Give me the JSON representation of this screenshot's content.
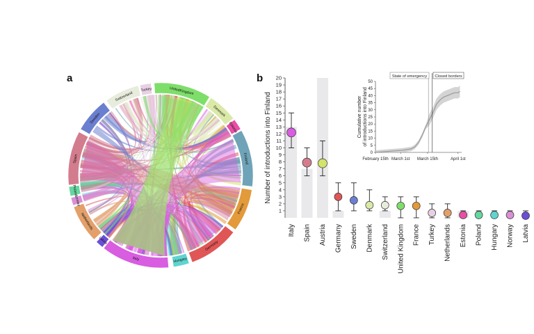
{
  "panels": {
    "a": "a",
    "b": "b"
  },
  "chart_data": [
    {
      "type": "chord",
      "panel": "a",
      "sectors": [
        {
          "name": "Austria",
          "color": "#d4e36b"
        },
        {
          "name": "Denmark",
          "color": "#dbe9a8"
        },
        {
          "name": "Estonia",
          "color": "#e84fa4"
        },
        {
          "name": "Finland",
          "color": "#6fa3b8"
        },
        {
          "name": "France",
          "color": "#e39a3a"
        },
        {
          "name": "Germany",
          "color": "#e05656"
        },
        {
          "name": "Hungary",
          "color": "#5fd4d0"
        },
        {
          "name": "Italy",
          "color": "#d85de0"
        },
        {
          "name": "Latvia",
          "color": "#6b4fd6"
        },
        {
          "name": "Netherlands",
          "color": "#e3a06b"
        },
        {
          "name": "Norway",
          "color": "#d98fd4"
        },
        {
          "name": "Poland",
          "color": "#66d6a0"
        },
        {
          "name": "Spain",
          "color": "#d37c8e"
        },
        {
          "name": "Sweden",
          "color": "#6b7fd0"
        },
        {
          "name": "Switzerland",
          "color": "#e8ecdc"
        },
        {
          "name": "Turkey",
          "color": "#e8d0e4"
        },
        {
          "name": "UnitedKingdom",
          "color": "#7ede6a"
        }
      ]
    },
    {
      "type": "dot-errorbar",
      "panel": "b",
      "ylabel": "Number of introductions into Finland",
      "ylim": [
        0,
        20
      ],
      "yticks": [
        1,
        2,
        3,
        4,
        5,
        6,
        7,
        8,
        9,
        10,
        11,
        12,
        13,
        14,
        15,
        16,
        17,
        18,
        19,
        20
      ],
      "categories": [
        "Italy",
        "Spain",
        "Austria",
        "Germany",
        "Sweden",
        "Denmark",
        "Switzerland",
        "United Kingdom",
        "France",
        "Turkey",
        "Netherlands",
        "Estonia",
        "Poland",
        "Hungary",
        "Norway",
        "Latvia"
      ],
      "values": [
        12.2,
        7.9,
        7.8,
        3.0,
        2.5,
        1.8,
        1.8,
        1.7,
        1.7,
        0.7,
        0.7,
        0.4,
        0.4,
        0.4,
        0.4,
        0.3
      ],
      "lower": [
        10.0,
        6.0,
        6.0,
        1.0,
        1.0,
        1.0,
        1.0,
        0,
        0,
        0,
        0,
        0,
        0,
        0,
        0,
        0
      ],
      "upper": [
        15.0,
        10.0,
        11.0,
        5.0,
        5.0,
        4.0,
        3.0,
        3.0,
        3.0,
        2.0,
        2.0,
        1.0,
        1.0,
        1.0,
        1.0,
        1.0
      ],
      "bar_background": [
        13.0,
        7.0,
        20.0,
        1.0,
        0.0,
        0.0,
        1.0,
        0.0,
        0.0,
        0.0,
        0.0,
        1.0,
        0.0,
        0.0,
        0.0,
        0.0
      ],
      "colors": [
        "#d85de0",
        "#d37c8e",
        "#d4e36b",
        "#e05656",
        "#6b7fd0",
        "#dbe9a8",
        "#e8ecdc",
        "#7ede6a",
        "#e39a3a",
        "#e8d0e4",
        "#e3a06b",
        "#e84fa4",
        "#66d6a0",
        "#5fd4d0",
        "#d98fd4",
        "#6b4fd6"
      ]
    },
    {
      "type": "line",
      "panel": "inset",
      "ylabel": "Cumulative number\nof introductions into Finland",
      "ylim": [
        0,
        50
      ],
      "yticks": [
        0,
        5,
        10,
        15,
        20,
        25,
        30,
        35,
        40,
        45,
        50
      ],
      "xticks": [
        "February 15th",
        "March 1st",
        "March 15th",
        "April 1st"
      ],
      "annotations": [
        "State of emergency",
        "Closed borders"
      ],
      "series": [
        {
          "x": [
            0,
            5,
            10,
            15,
            20,
            22,
            24,
            26,
            28,
            30,
            32,
            34,
            36,
            38,
            40,
            42,
            44,
            46,
            47
          ],
          "y": [
            0,
            0.5,
            1,
            1.5,
            2.5,
            4,
            7,
            12,
            18,
            23,
            28,
            34,
            37,
            39,
            40,
            41,
            42,
            42,
            43
          ]
        }
      ]
    }
  ]
}
